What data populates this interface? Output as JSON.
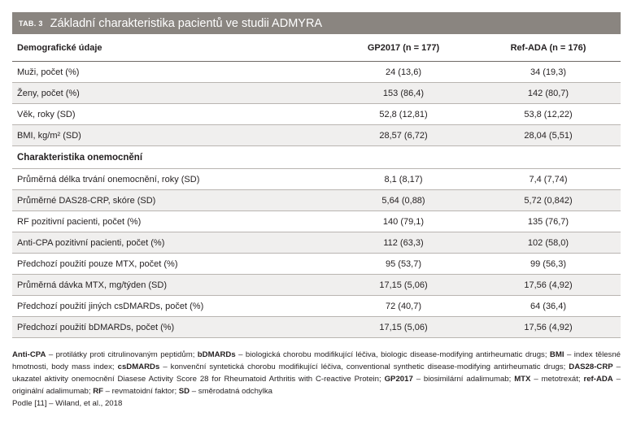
{
  "title": {
    "tab": "TAB. 3",
    "text": "Základní charakteristika pacientů ve studii ADMYRA"
  },
  "table": {
    "headers": [
      "Demografické údaje",
      "GP2017 (n = 177)",
      "Ref-ADA (n = 176)"
    ],
    "demographic_rows": [
      [
        "Muži, počet (%)",
        "24 (13,6)",
        "34 (19,3)"
      ],
      [
        "Ženy, počet (%)",
        "153 (86,4)",
        "142 (80,7)"
      ],
      [
        "Věk, roky (SD)",
        "52,8 (12,81)",
        "53,8 (12,22)"
      ],
      [
        "BMI, kg/m² (SD)",
        "28,57 (6,72)",
        "28,04 (5,51)"
      ]
    ],
    "section2_title": "Charakteristika onemocnění",
    "disease_rows": [
      [
        "Průměrná délka trvání onemocnění, roky (SD)",
        "8,1 (8,17)",
        "7,4 (7,74)"
      ],
      [
        "Průměrné DAS28-CRP, skóre (SD)",
        "5,64 (0,88)",
        "5,72 (0,842)"
      ],
      [
        "RF pozitivní pacienti, počet (%)",
        "140 (79,1)",
        "135 (76,7)"
      ],
      [
        "Anti-CPA pozitivní pacienti, počet (%)",
        "112 (63,3)",
        "102 (58,0)"
      ],
      [
        "Předchozí použití pouze MTX, počet (%)",
        "95 (53,7)",
        "99 (56,3)"
      ],
      [
        "Průměrná dávka MTX, mg/týden (SD)",
        "17,15 (5,06)",
        "17,56 (4,92)"
      ],
      [
        "Předchozí použití jiných csDMARDs, počet (%)",
        "72 (40,7)",
        "64 (36,4)"
      ],
      [
        "Předchozí použití bDMARDs, počet (%)",
        "17,15 (5,06)",
        "17,56 (4,92)"
      ]
    ]
  },
  "notes": [
    {
      "term": "Anti-CPA",
      "def": " – protilátky proti citrulinovaným peptidům; "
    },
    {
      "term": "bDMARDs",
      "def": " – biologická chorobu modifikující léčiva, biologic disease-modifying antirheumatic drugs; "
    },
    {
      "term": "BMI",
      "def": " – index tělesné hmotnosti, body mass index; "
    },
    {
      "term": "csDMARDs",
      "def": " – konvenční syntetická chorobu modifikující léčiva, conventional synthetic disease-modifying antirheumatic drugs; "
    },
    {
      "term": "DAS28-CRP",
      "def": " – ukazatel aktivity onemocnění Diasese Activity Score 28 for Rheumatoid Arthritis with C-reactive Protein; "
    },
    {
      "term": "GP2017",
      "def": " – biosimilární adalimumab; "
    },
    {
      "term": "MTX",
      "def": " – metotrexát; "
    },
    {
      "term": "ref-ADA",
      "def": " – originální adalimumab; "
    },
    {
      "term": "RF",
      "def": " – revmatoidní faktor; "
    },
    {
      "term": "SD",
      "def": " – směrodatná odchylka"
    }
  ],
  "source": "Podle [11] – Wiland, et al., 2018"
}
